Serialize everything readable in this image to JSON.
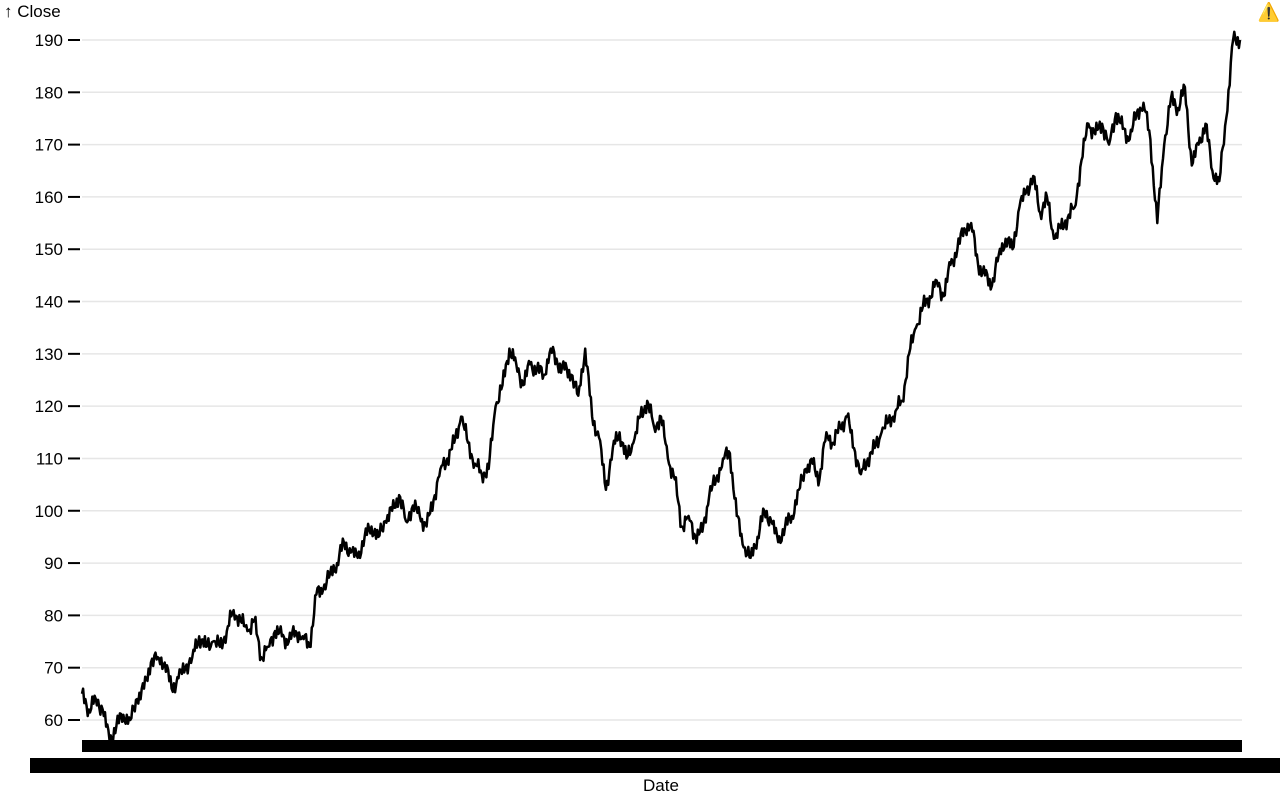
{
  "warning_icon": "warning-icon",
  "warning_glyph": "⚠️",
  "chart_data": {
    "type": "line",
    "title": "",
    "ylabel": "↑ Close",
    "xlabel": "Date",
    "ylim": [
      55,
      192
    ],
    "yticks": [
      60,
      70,
      80,
      90,
      100,
      110,
      120,
      130,
      140,
      150,
      160,
      170,
      180,
      190
    ],
    "grid": true,
    "line_color": "#000000",
    "x_tick_labels_note_values": [],
    "x_range_index": [
      0,
      1250
    ],
    "series": [
      {
        "values_by_index_step_10": [
          65,
          62,
          64,
          62,
          56,
          59,
          61,
          60,
          64,
          66,
          71,
          72,
          71,
          66,
          68,
          70,
          72,
          76,
          74,
          75,
          74,
          77,
          81,
          79,
          77,
          79,
          72,
          74,
          77,
          76,
          75,
          77,
          76,
          74,
          84,
          85,
          88,
          90,
          94,
          92,
          91,
          95,
          97,
          95,
          98,
          100,
          103,
          98,
          101,
          99,
          97,
          102,
          108,
          110,
          113,
          118,
          113,
          109,
          107,
          108,
          120,
          124,
          131,
          128,
          124,
          128,
          127,
          126,
          131,
          128,
          127,
          126,
          122,
          131,
          118,
          114,
          104,
          112,
          115,
          110,
          113,
          118,
          121,
          116,
          118,
          110,
          106,
          97,
          99,
          95,
          96,
          103,
          106,
          110,
          111,
          99,
          93,
          91,
          95,
          100,
          98,
          94,
          97,
          99,
          104,
          108,
          109,
          106,
          115,
          113,
          116,
          118,
          112,
          107,
          110,
          112,
          115,
          117,
          119,
          121,
          130,
          135,
          139,
          141,
          144,
          141,
          147,
          150,
          154,
          155,
          147,
          145,
          143,
          149,
          152,
          150,
          158,
          161,
          164,
          157,
          160,
          152,
          154,
          156,
          158,
          167,
          174,
          172,
          174,
          170,
          176,
          173,
          171,
          176,
          178,
          171,
          155,
          170,
          179,
          177,
          181,
          166,
          170,
          174,
          165,
          163,
          175,
          190,
          190
        ]
      }
    ]
  }
}
